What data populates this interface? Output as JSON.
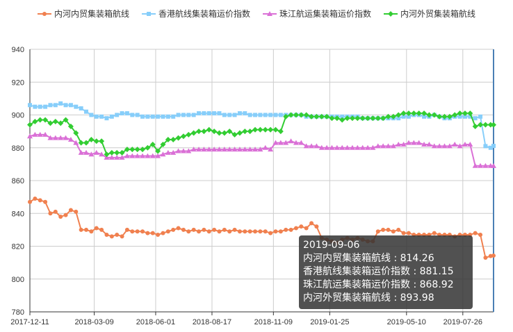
{
  "chart_data": {
    "type": "line",
    "title": "",
    "xlabel": "",
    "ylabel": "",
    "ylim": [
      780,
      940
    ],
    "y_ticks": [
      780,
      800,
      820,
      840,
      860,
      880,
      900,
      920,
      940
    ],
    "x_ticks": [
      "2017-12-11",
      "2018-03-09",
      "2018-06-01",
      "2018-08-17",
      "2018-11-09",
      "2019-01-25",
      "2019-05-10",
      "2019-07-26"
    ],
    "grid": true,
    "legend": "top-center",
    "x": [
      "2017-12-11",
      "2017-12-18",
      "2017-12-25",
      "2018-01-01",
      "2018-01-08",
      "2018-01-15",
      "2018-01-22",
      "2018-01-29",
      "2018-02-05",
      "2018-02-12",
      "2018-02-19",
      "2018-02-26",
      "2018-03-05",
      "2018-03-12",
      "2018-03-19",
      "2018-03-26",
      "2018-04-02",
      "2018-04-09",
      "2018-04-16",
      "2018-04-23",
      "2018-04-30",
      "2018-05-07",
      "2018-05-14",
      "2018-05-21",
      "2018-05-28",
      "2018-06-04",
      "2018-06-11",
      "2018-06-18",
      "2018-06-25",
      "2018-07-02",
      "2018-07-09",
      "2018-07-16",
      "2018-07-23",
      "2018-07-30",
      "2018-08-06",
      "2018-08-13",
      "2018-08-20",
      "2018-08-27",
      "2018-09-03",
      "2018-09-10",
      "2018-09-17",
      "2018-09-24",
      "2018-10-01",
      "2018-10-08",
      "2018-10-15",
      "2018-10-22",
      "2018-10-29",
      "2018-11-05",
      "2018-11-12",
      "2018-11-19",
      "2018-11-26",
      "2018-12-03",
      "2018-12-10",
      "2018-12-17",
      "2018-12-24",
      "2018-12-31",
      "2019-01-07",
      "2019-01-14",
      "2019-01-21",
      "2019-01-28",
      "2019-02-04",
      "2019-02-11",
      "2019-02-18",
      "2019-02-25",
      "2019-03-04",
      "2019-03-11",
      "2019-03-18",
      "2019-03-25",
      "2019-04-01",
      "2019-04-08",
      "2019-04-15",
      "2019-04-22",
      "2019-04-29",
      "2019-05-06",
      "2019-05-13",
      "2019-05-20",
      "2019-05-27",
      "2019-06-03",
      "2019-06-10",
      "2019-06-17",
      "2019-06-24",
      "2019-07-01",
      "2019-07-08",
      "2019-07-15",
      "2019-07-22",
      "2019-07-29",
      "2019-08-05",
      "2019-08-12",
      "2019-08-19",
      "2019-08-26",
      "2019-09-02",
      "2019-09-06"
    ],
    "series": [
      {
        "name": "内河内贸集装箱航线",
        "color": "#f0804f",
        "marker": "circle",
        "values": [
          847,
          849,
          848,
          847,
          840,
          841,
          838,
          839,
          842,
          841,
          830,
          830,
          829,
          831,
          830,
          827,
          826,
          827,
          826,
          830,
          829,
          829,
          829,
          828,
          828,
          827,
          828,
          829,
          830,
          831,
          830,
          829,
          830,
          829,
          830,
          829,
          830,
          829,
          830,
          829,
          830,
          829,
          829,
          829,
          829,
          829,
          829,
          828,
          829,
          829,
          830,
          830,
          831,
          832,
          831,
          834,
          832,
          825,
          824,
          823,
          822,
          824,
          825,
          824,
          825,
          824,
          823,
          823,
          829,
          830,
          830,
          829,
          830,
          828,
          828,
          827,
          827,
          827,
          827,
          828,
          827,
          827,
          827,
          826,
          827,
          827,
          827,
          828,
          827,
          813,
          814,
          814.26
        ]
      },
      {
        "name": "香港航线集装箱运价指数",
        "color": "#87cefa",
        "marker": "square",
        "values": [
          906,
          905,
          905,
          905,
          906,
          906,
          907,
          906,
          906,
          905,
          904,
          902,
          900,
          899,
          899,
          898,
          899,
          900,
          901,
          901,
          900,
          900,
          899,
          899,
          899,
          899,
          899,
          899,
          899,
          900,
          900,
          900,
          900,
          901,
          901,
          901,
          901,
          901,
          900,
          900,
          900,
          901,
          901,
          900,
          900,
          900,
          900,
          900,
          900,
          900,
          900,
          900,
          900,
          900,
          899,
          899,
          899,
          899,
          899,
          899,
          899,
          899,
          899,
          899,
          899,
          898,
          898,
          898,
          898,
          898,
          898,
          898,
          898,
          899,
          899,
          900,
          900,
          899,
          899,
          900,
          899,
          898,
          898,
          899,
          899,
          899,
          899,
          898,
          899,
          881,
          880,
          881.15
        ]
      },
      {
        "name": "珠江航运集装箱运价指数",
        "color": "#da70d6",
        "marker": "triangle",
        "values": [
          887,
          888,
          888,
          888,
          886,
          886,
          886,
          886,
          885,
          883,
          877,
          877,
          876,
          877,
          876,
          874,
          874,
          874,
          874,
          875,
          875,
          875,
          875,
          875,
          875,
          875,
          876,
          877,
          877,
          878,
          878,
          878,
          879,
          879,
          879,
          879,
          879,
          879,
          879,
          879,
          879,
          879,
          879,
          879,
          879,
          879,
          880,
          879,
          883,
          883,
          883,
          884,
          883,
          883,
          881,
          881,
          881,
          880,
          880,
          880,
          880,
          880,
          880,
          880,
          880,
          880,
          880,
          880,
          881,
          881,
          881,
          881,
          882,
          882,
          883,
          883,
          883,
          882,
          882,
          881,
          881,
          881,
          881,
          882,
          881,
          882,
          882,
          869,
          869,
          869,
          869,
          868.92
        ]
      },
      {
        "name": "内河外贸集装箱航线",
        "color": "#32cd32",
        "marker": "diamond",
        "values": [
          894,
          896,
          897,
          897,
          895,
          896,
          895,
          897,
          893,
          889,
          883,
          883,
          885,
          884,
          884,
          876,
          877,
          877,
          877,
          879,
          879,
          879,
          879,
          880,
          882,
          878,
          882,
          885,
          885,
          886,
          887,
          888,
          889,
          890,
          890,
          891,
          890,
          889,
          889,
          890,
          888,
          889,
          890,
          890,
          891,
          891,
          891,
          891,
          891,
          890,
          899,
          900,
          900,
          900,
          900,
          899,
          899,
          899,
          899,
          898,
          898,
          897,
          898,
          898,
          898,
          898,
          898,
          898,
          898,
          898,
          899,
          899,
          900,
          901,
          901,
          901,
          901,
          901,
          900,
          900,
          899,
          899,
          899,
          900,
          901,
          901,
          901,
          893,
          894,
          894,
          894,
          893.98
        ]
      }
    ],
    "tooltip": {
      "date": "2019-09-06",
      "rows": [
        "内河内贸集装箱航线 : 814.26",
        "香港航线集装箱运价指数 : 881.15",
        "珠江航运集装箱运价指数 : 868.92",
        "内河外贸集装箱航线 : 893.98"
      ]
    }
  }
}
